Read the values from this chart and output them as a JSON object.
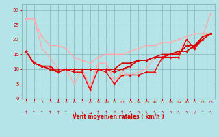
{
  "x": [
    0,
    1,
    2,
    3,
    4,
    5,
    6,
    7,
    8,
    9,
    10,
    11,
    12,
    13,
    14,
    15,
    16,
    17,
    18,
    19,
    20,
    21,
    22,
    23
  ],
  "lines": [
    {
      "y": [
        27,
        27,
        21,
        18,
        18,
        17,
        14,
        13,
        12,
        14,
        15,
        15,
        15,
        16,
        17,
        18,
        18,
        19,
        19,
        20,
        21,
        22,
        22,
        22
      ],
      "color": "#ffaaaa",
      "lw": 1.0,
      "marker": "D",
      "ms": 2.0
    },
    {
      "y": [
        27,
        27,
        17,
        14,
        10,
        10,
        5,
        10,
        4,
        12,
        12,
        6,
        9,
        8,
        9,
        10,
        14,
        14,
        15,
        16,
        20,
        17,
        21,
        29
      ],
      "color": "#ffaaaa",
      "lw": 1.0,
      "marker": null,
      "ms": 0
    },
    {
      "y": [
        16,
        12,
        11,
        10,
        9,
        10,
        10,
        10,
        10,
        10,
        10,
        10,
        12,
        12,
        13,
        13,
        14,
        14,
        15,
        16,
        16,
        18,
        20,
        22
      ],
      "color": "#cc0000",
      "lw": 1.2,
      "marker": "D",
      "ms": 2.0
    },
    {
      "y": [
        16,
        12,
        11,
        11,
        9,
        10,
        10,
        10,
        10,
        10,
        10,
        10,
        10,
        11,
        13,
        13,
        14,
        15,
        15,
        15,
        18,
        18,
        21,
        22
      ],
      "color": "#cc0000",
      "lw": 1.0,
      "marker": null,
      "ms": 0
    },
    {
      "y": [
        16,
        12,
        11,
        10,
        10,
        10,
        10,
        10,
        10,
        10,
        10,
        9,
        10,
        11,
        13,
        13,
        14,
        14,
        15,
        15,
        18,
        17,
        21,
        22
      ],
      "color": "#dd0000",
      "lw": 1.0,
      "marker": "D",
      "ms": 2.0
    },
    {
      "y": [
        16,
        12,
        11,
        11,
        9,
        10,
        9,
        9,
        3,
        10,
        9,
        5,
        8,
        8,
        8,
        9,
        9,
        14,
        14,
        14,
        20,
        17,
        20,
        22
      ],
      "color": "#ee0000",
      "lw": 1.0,
      "marker": "D",
      "ms": 2.0
    }
  ],
  "xlabel": "Vent moyen/en rafales ( km/h )",
  "ylabel_ticks": [
    0,
    5,
    10,
    15,
    20,
    25,
    30
  ],
  "xlim": [
    -0.5,
    23.5
  ],
  "ylim": [
    0,
    32
  ],
  "bg_color": "#b4e4e8",
  "grid_color": "#8fbbbb",
  "tick_color": "#cc0000",
  "label_color": "#cc0000",
  "arrow_chars": [
    "↑",
    "↑",
    "↑",
    "↑",
    "↑",
    "↑",
    "↘",
    "↘",
    "→",
    "↑",
    "↑",
    "↗",
    "↑",
    "↖",
    "↖",
    "↖",
    "↖",
    "↖",
    "↖",
    "↖",
    "↖",
    "↗",
    "↑",
    "↖"
  ]
}
